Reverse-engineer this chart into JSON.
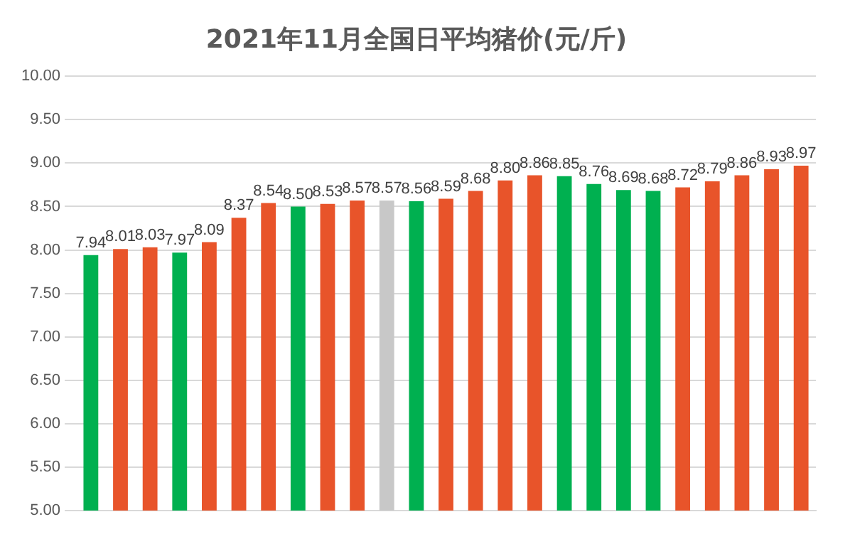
{
  "chart_data": {
    "type": "bar",
    "title": "2021年11月全国日平均猪价(元/斤)",
    "categories": [
      null,
      null,
      null,
      null,
      null,
      null,
      null,
      null,
      null,
      null,
      null,
      null,
      null,
      null,
      null,
      null,
      null,
      null,
      null,
      null,
      null,
      null,
      null,
      null,
      null
    ],
    "values": [
      7.94,
      8.01,
      8.03,
      7.97,
      8.09,
      8.37,
      8.54,
      8.5,
      8.53,
      8.57,
      8.57,
      8.56,
      8.59,
      8.68,
      8.8,
      8.86,
      8.85,
      8.76,
      8.69,
      8.68,
      8.72,
      8.79,
      8.86,
      8.93,
      8.97
    ],
    "value_labels": [
      "7.94",
      "8.01",
      "8.03",
      "7.97",
      "8.09",
      "8.37",
      "8.54",
      "8.50",
      "8.53",
      "8.57",
      "8.57",
      "8.56",
      "8.59",
      "8.68",
      "8.80",
      "8.86",
      "8.85",
      "8.76",
      "8.69",
      "8.68",
      "8.72",
      "8.79",
      "8.86",
      "8.93",
      "8.97"
    ],
    "colors": [
      "#00b050",
      "#e8542a",
      "#e8542a",
      "#00b050",
      "#e8542a",
      "#e8542a",
      "#e8542a",
      "#00b050",
      "#e8542a",
      "#e8542a",
      "#c8c8c8",
      "#00b050",
      "#e8542a",
      "#e8542a",
      "#e8542a",
      "#e8542a",
      "#00b050",
      "#00b050",
      "#00b050",
      "#00b050",
      "#e8542a",
      "#e8542a",
      "#e8542a",
      "#e8542a",
      "#e8542a"
    ],
    "ylim": [
      5,
      10
    ],
    "yticks": [
      {
        "value": 5,
        "label": "5.00"
      },
      {
        "value": 5.5,
        "label": "5.50"
      },
      {
        "value": 6,
        "label": "6.00"
      },
      {
        "value": 6.5,
        "label": "6.50"
      },
      {
        "value": 7,
        "label": "7.00"
      },
      {
        "value": 7.5,
        "label": "7.50"
      },
      {
        "value": 8,
        "label": "8.00"
      },
      {
        "value": 8.5,
        "label": "8.50"
      },
      {
        "value": 9,
        "label": "9.00"
      },
      {
        "value": 9.5,
        "label": "9.50"
      },
      {
        "value": 10,
        "label": "10.00"
      }
    ],
    "grid": "y"
  }
}
